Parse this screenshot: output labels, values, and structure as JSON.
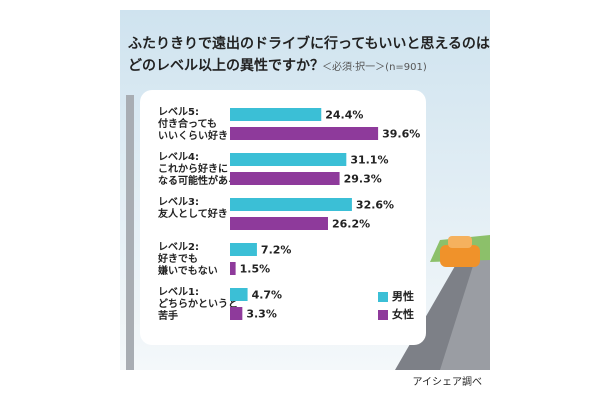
{
  "chart_data": {
    "type": "bar",
    "orientation": "horizontal",
    "title": [
      "ふたりきりで遠出のドライブに行ってもいいと思えるのは",
      "どのレベル以上の異性ですか？"
    ],
    "subtitle": "＜必須·択一＞(n=901)",
    "categories": [
      [
        "レベル5:",
        "付き合っても",
        "いいくらい好き"
      ],
      [
        "レベル4:",
        "これから好きに",
        "なる可能性がある"
      ],
      [
        "レベル3:",
        "友人として好き"
      ],
      [
        "レベル2:",
        "好きでも",
        "嫌いでもない"
      ],
      [
        "レベル1:",
        "どちらかというと",
        "苦手"
      ]
    ],
    "series": [
      {
        "name": "男性",
        "color": "#3bbfd6",
        "values": [
          24.4,
          31.1,
          32.6,
          7.2,
          4.7
        ],
        "value_labels": [
          "24.4%",
          "31.1%",
          "32.6%",
          "7.2%",
          "4.7%"
        ]
      },
      {
        "name": "女性",
        "color": "#8e3a9b",
        "values": [
          39.6,
          29.3,
          26.2,
          1.5,
          3.3
        ],
        "value_labels": [
          "39.6%",
          "29.3%",
          "26.2%",
          "1.5%",
          "3.3%"
        ]
      }
    ],
    "legend": "lower right",
    "source": "アイシェア調べ"
  }
}
